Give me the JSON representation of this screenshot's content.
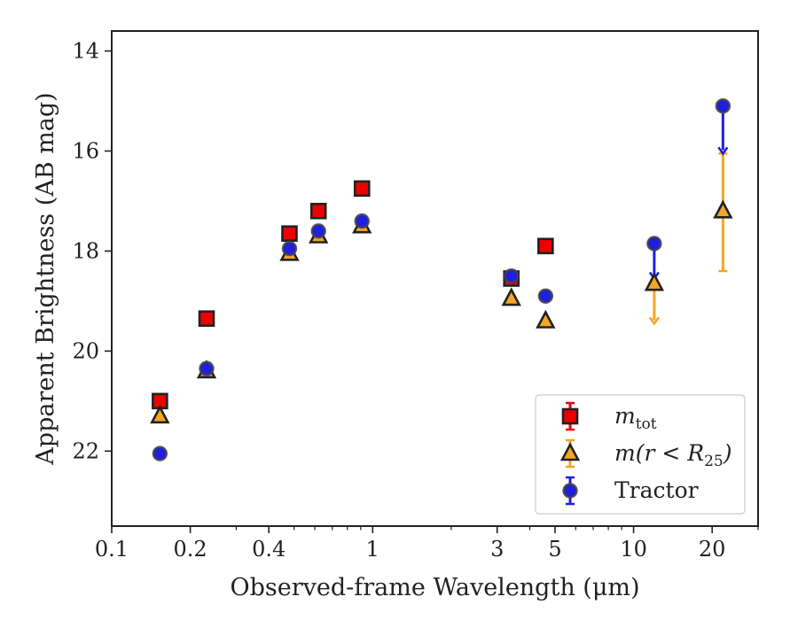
{
  "chart_data": {
    "type": "scatter",
    "xlabel": "Observed-frame Wavelength (μm)",
    "ylabel": "Apparent Brightness (AB mag)",
    "xscale": "log",
    "xlim": [
      0.1,
      30
    ],
    "ylim": [
      23.5,
      13.6
    ],
    "y_inverted": true,
    "xticks": [
      0.1,
      0.2,
      0.4,
      1,
      3,
      5,
      10,
      20
    ],
    "xtick_labels": [
      "0.1",
      "0.2",
      "0.4",
      "1",
      "3",
      "5",
      "10",
      "20"
    ],
    "yticks": [
      14,
      16,
      18,
      20,
      22
    ],
    "ytick_labels": [
      "14",
      "16",
      "18",
      "20",
      "22"
    ],
    "grid": false,
    "legend_position": "lower-right",
    "series": [
      {
        "name": "m_tot",
        "marker": "square",
        "color": "#ee0000",
        "edge": "#222222",
        "x": [
          0.153,
          0.231,
          0.48,
          0.62,
          0.91,
          3.4,
          4.6
        ],
        "y": [
          21.0,
          19.35,
          17.65,
          17.2,
          16.75,
          18.55,
          17.9
        ]
      },
      {
        "name": "m(r<R25)",
        "marker": "triangle",
        "color": "#f5a623",
        "edge": "#222222",
        "x": [
          0.153,
          0.231,
          0.48,
          0.62,
          0.91,
          3.4,
          4.6,
          12.0,
          22.0
        ],
        "y": [
          21.3,
          20.4,
          18.05,
          17.7,
          17.5,
          18.95,
          19.4,
          18.65,
          17.2
        ],
        "upper_limits": [
          {
            "x": 12.0,
            "y": 18.65,
            "to": 19.45
          }
        ],
        "errorbars": [
          {
            "x": 22.0,
            "y": 17.2,
            "low": 16.05,
            "high": 18.4
          }
        ]
      },
      {
        "name": "Tractor",
        "marker": "circle",
        "color": "#1f1fdd",
        "edge": "#444444",
        "x": [
          0.153,
          0.231,
          0.48,
          0.62,
          0.91,
          3.4,
          4.6,
          12.0,
          22.0
        ],
        "y": [
          22.05,
          20.35,
          17.95,
          17.6,
          17.4,
          18.5,
          18.9,
          17.85,
          15.1
        ],
        "upper_limits": [
          {
            "x": 12.0,
            "y": 17.85,
            "to": 18.55
          },
          {
            "x": 22.0,
            "y": 15.1,
            "to": 16.05
          }
        ]
      }
    ],
    "legend": [
      {
        "label_main": "m",
        "label_sub": "tot"
      },
      {
        "label_main": "m(r < R",
        "label_sub": "25",
        "label_tail": ")"
      },
      {
        "label_main": "Tractor"
      }
    ]
  }
}
